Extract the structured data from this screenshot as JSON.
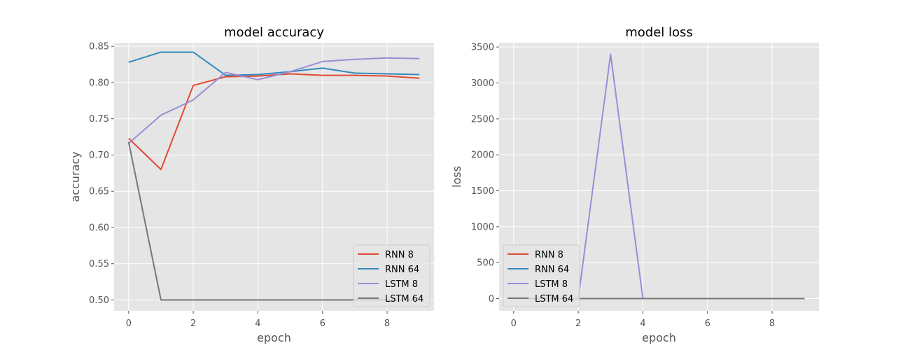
{
  "chart_data": [
    {
      "type": "line",
      "title": "model accuracy",
      "xlabel": "epoch",
      "ylabel": "accuracy",
      "xlim": [
        -0.45,
        9.45
      ],
      "ylim": [
        0.485,
        0.855
      ],
      "xticks": [
        0,
        2,
        4,
        6,
        8
      ],
      "xtick_labels": [
        "0",
        "2",
        "4",
        "6",
        "8"
      ],
      "yticks": [
        0.5,
        0.55,
        0.6,
        0.65,
        0.7,
        0.75,
        0.8,
        0.85
      ],
      "ytick_labels": [
        "0.50",
        "0.55",
        "0.60",
        "0.65",
        "0.70",
        "0.75",
        "0.80",
        "0.85"
      ],
      "grid": true,
      "legend": "lower right",
      "x": [
        0,
        1,
        2,
        3,
        4,
        5,
        6,
        7,
        8,
        9
      ],
      "series": [
        {
          "name": "RNN 8",
          "color": "#e24a33",
          "values": [
            0.723,
            0.68,
            0.796,
            0.808,
            0.809,
            0.812,
            0.81,
            0.81,
            0.809,
            0.806
          ]
        },
        {
          "name": "RNN 64",
          "color": "#348abd",
          "values": [
            0.828,
            0.842,
            0.842,
            0.81,
            0.811,
            0.815,
            0.82,
            0.813,
            0.812,
            0.811
          ]
        },
        {
          "name": "LSTM 8",
          "color": "#988ed5",
          "values": [
            0.716,
            0.755,
            0.776,
            0.814,
            0.804,
            0.815,
            0.829,
            0.832,
            0.834,
            0.833
          ]
        },
        {
          "name": "LSTM 64",
          "color": "#777777",
          "values": [
            0.718,
            0.5,
            0.5,
            0.5,
            0.5,
            0.5,
            0.5,
            0.5,
            0.5,
            0.5
          ]
        }
      ]
    },
    {
      "type": "line",
      "title": "model loss",
      "xlabel": "epoch",
      "ylabel": "loss",
      "xlim": [
        -0.45,
        9.45
      ],
      "ylim": [
        -170,
        3560
      ],
      "xticks": [
        0,
        2,
        4,
        6,
        8
      ],
      "xtick_labels": [
        "0",
        "2",
        "4",
        "6",
        "8"
      ],
      "yticks": [
        0,
        500,
        1000,
        1500,
        2000,
        2500,
        3000,
        3500
      ],
      "ytick_labels": [
        "0",
        "500",
        "1000",
        "1500",
        "2000",
        "2500",
        "3000",
        "3500"
      ],
      "grid": true,
      "legend": "lower left",
      "x": [
        0,
        1,
        2,
        3,
        4,
        5,
        6,
        7,
        8,
        9
      ],
      "series": [
        {
          "name": "RNN 8",
          "color": "#e24a33",
          "values": [
            0.5,
            0.5,
            0.4,
            0.4,
            0.4,
            0.4,
            0.4,
            0.4,
            0.4,
            0.4
          ]
        },
        {
          "name": "RNN 64",
          "color": "#348abd",
          "values": [
            0.4,
            0.4,
            0.4,
            0.4,
            0.4,
            0.4,
            0.4,
            0.4,
            0.4,
            0.4
          ]
        },
        {
          "name": "LSTM 8",
          "color": "#988ed5",
          "values": [
            0.6,
            0.5,
            0.5,
            3400,
            0.5,
            0.4,
            0.4,
            0.4,
            0.4,
            0.4
          ]
        },
        {
          "name": "LSTM 64",
          "color": "#777777",
          "values": [
            0.7,
            0.7,
            0.7,
            0.7,
            0.7,
            0.7,
            0.7,
            0.7,
            0.7,
            0.7
          ]
        }
      ]
    }
  ]
}
